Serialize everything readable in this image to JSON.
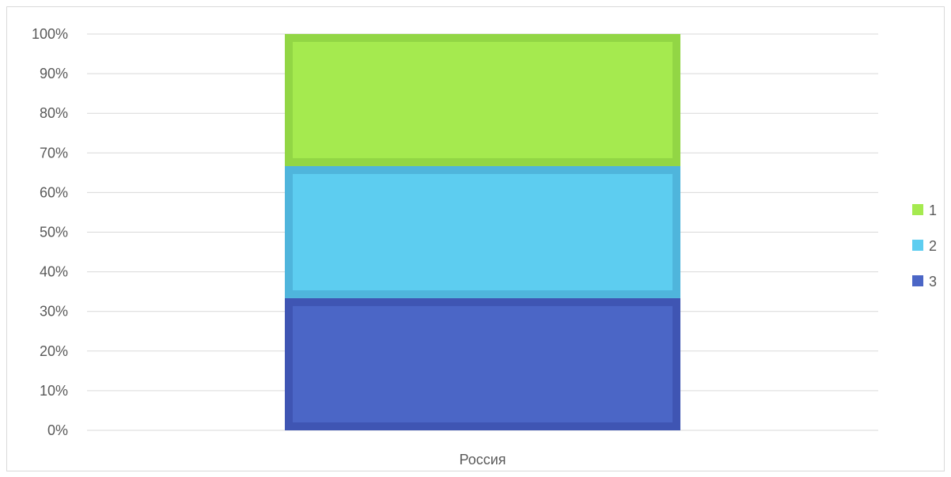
{
  "chart_data": {
    "type": "bar",
    "stacked": "percent",
    "categories": [
      "Россия"
    ],
    "series": [
      {
        "name": "1",
        "values": [
          33.33
        ],
        "color": "#a5ea4f",
        "border": "#92d645"
      },
      {
        "name": "2",
        "values": [
          33.33
        ],
        "color": "#5dcdf0",
        "border": "#4fb5dc"
      },
      {
        "name": "3",
        "values": [
          33.34
        ],
        "color": "#4b66c6",
        "border": "#3f55b3"
      }
    ],
    "y_ticks": [
      "0%",
      "10%",
      "20%",
      "30%",
      "40%",
      "50%",
      "60%",
      "70%",
      "80%",
      "90%",
      "100%"
    ],
    "ylim": [
      0,
      100
    ],
    "grid": true,
    "gridline_color": "#d9d9d9",
    "legend_position": "right"
  }
}
